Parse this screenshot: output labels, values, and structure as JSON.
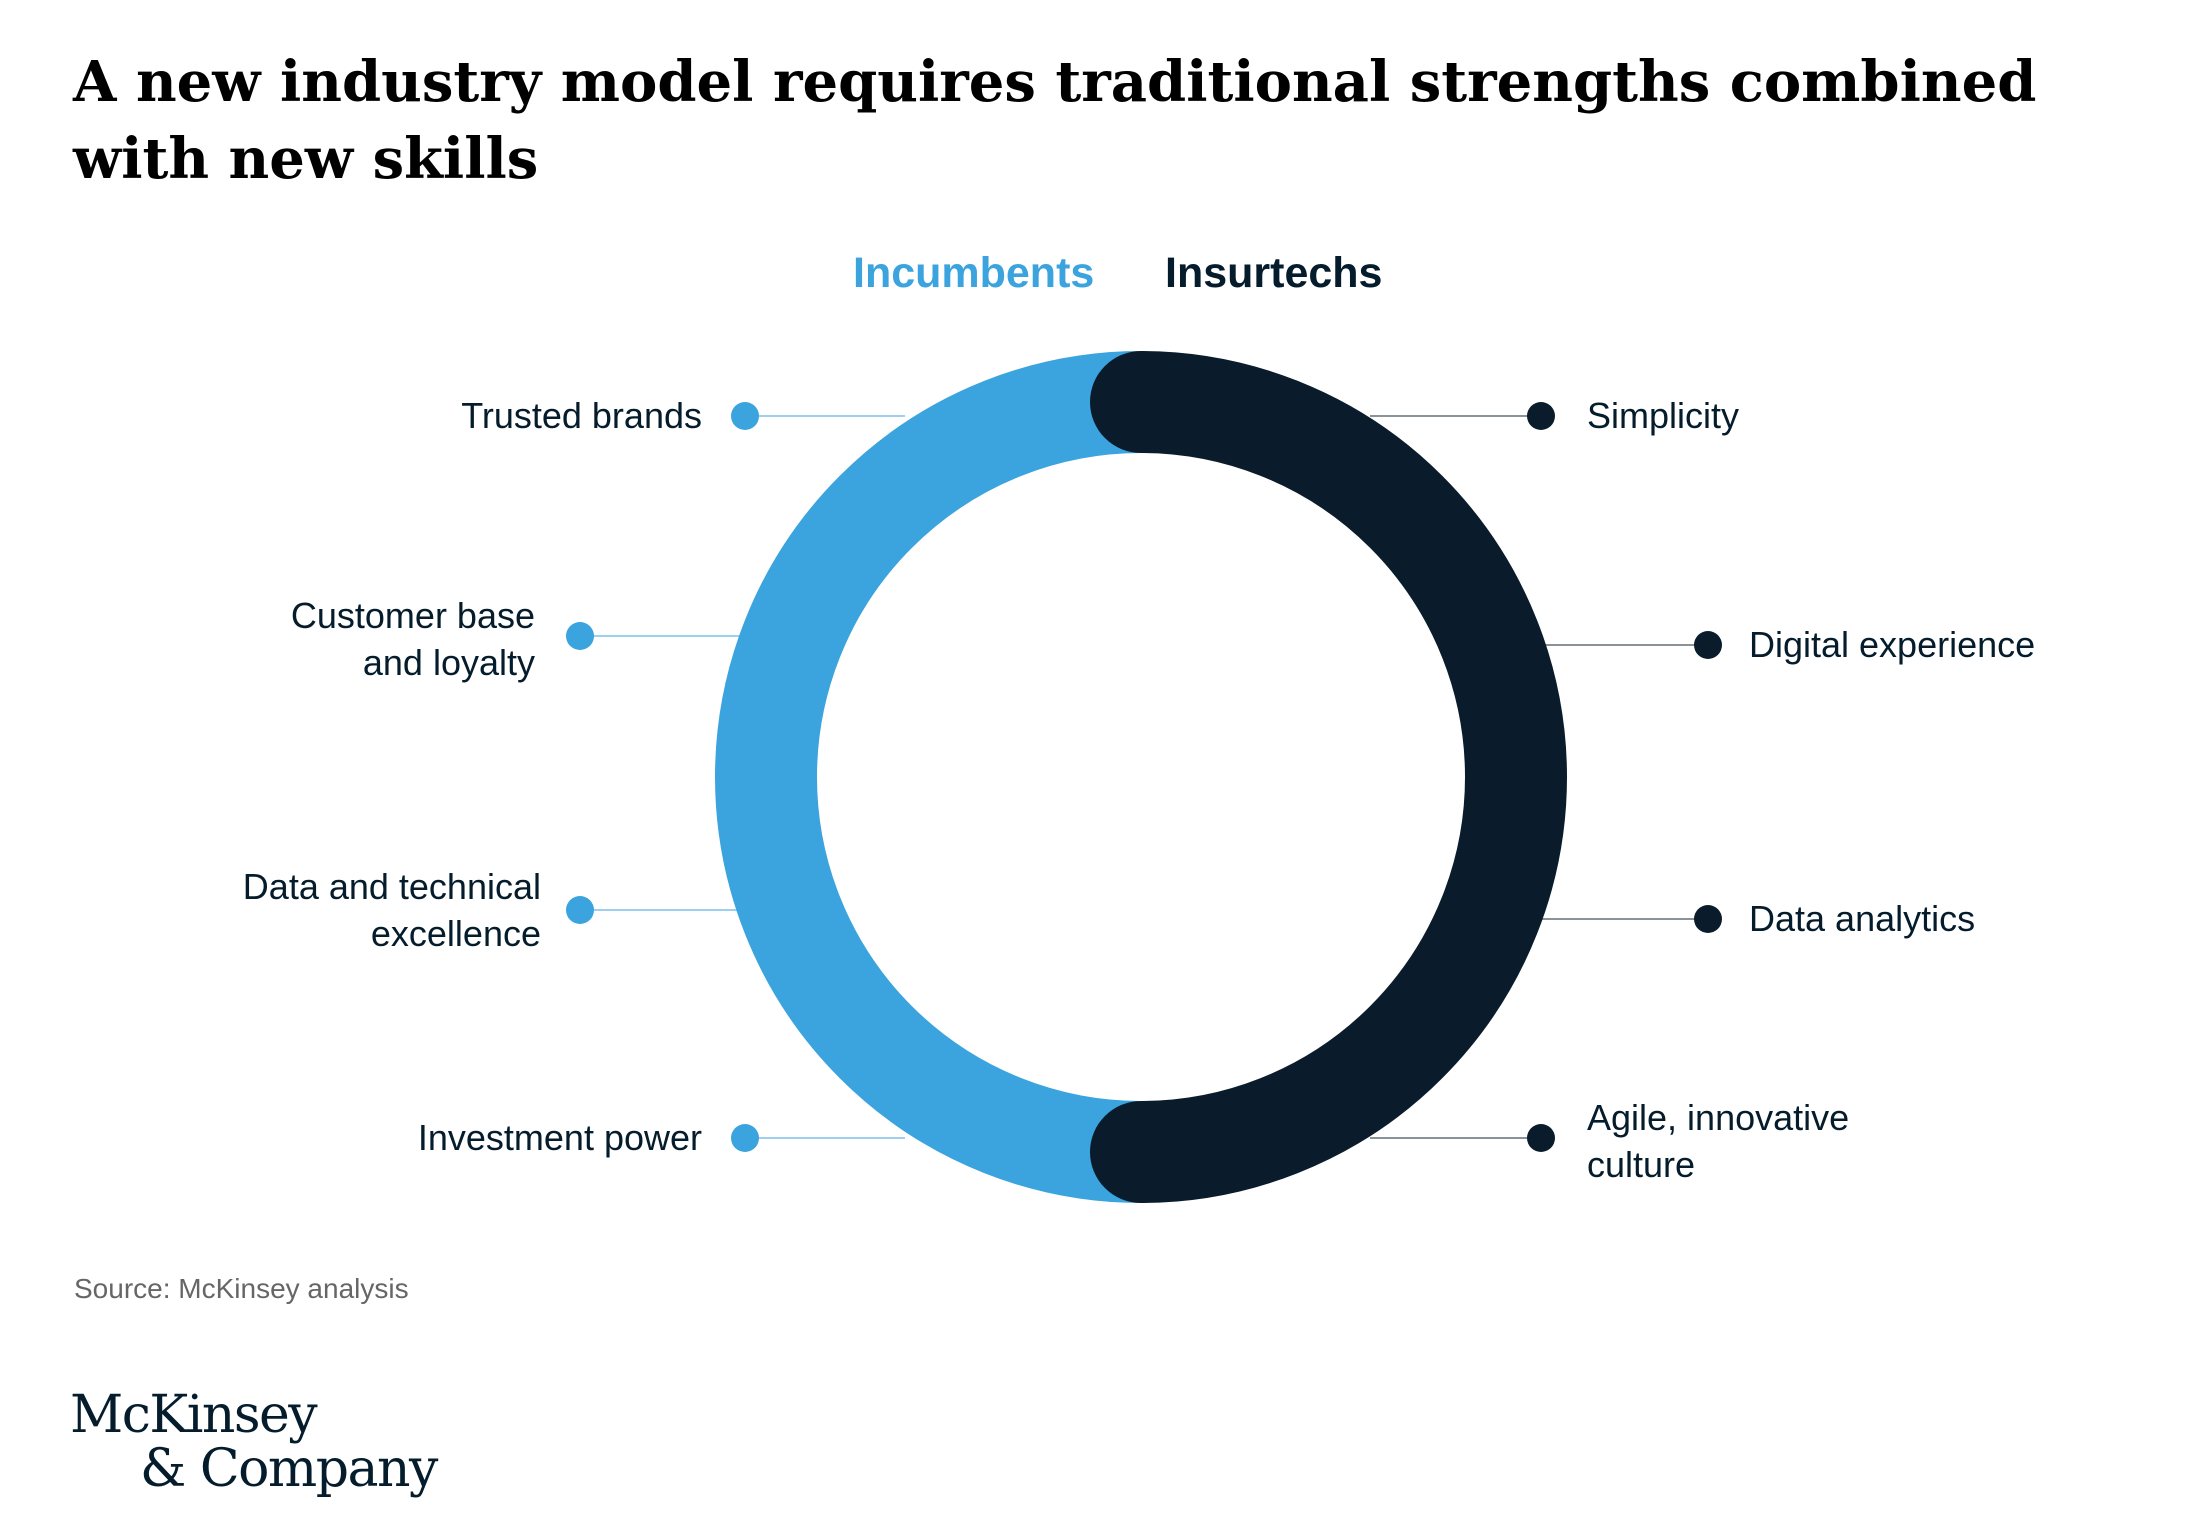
{
  "title": "A new industry model requires traditional strengths combined with new skills",
  "headings": {
    "left": "Incumbents",
    "right": "Insurtechs"
  },
  "colors": {
    "incumbents": "#3ba3dd",
    "insurtechs": "#0a1c2c",
    "text": "#051c2c",
    "connector_incumbents": "#9dd0ee",
    "connector_insurtechs": "#8a929a"
  },
  "incumbents_strengths": [
    "Trusted brands",
    "Customer base\nand loyalty",
    "Data and technical\nexcellence",
    "Investment power"
  ],
  "insurtechs_strengths": [
    "Simplicity",
    "Digital experience",
    "Data analytics",
    "Agile, innovative\nculture"
  ],
  "source": "Source:  McKinsey analysis",
  "logo": {
    "line1": "McKinsey",
    "line2": "& Company"
  }
}
